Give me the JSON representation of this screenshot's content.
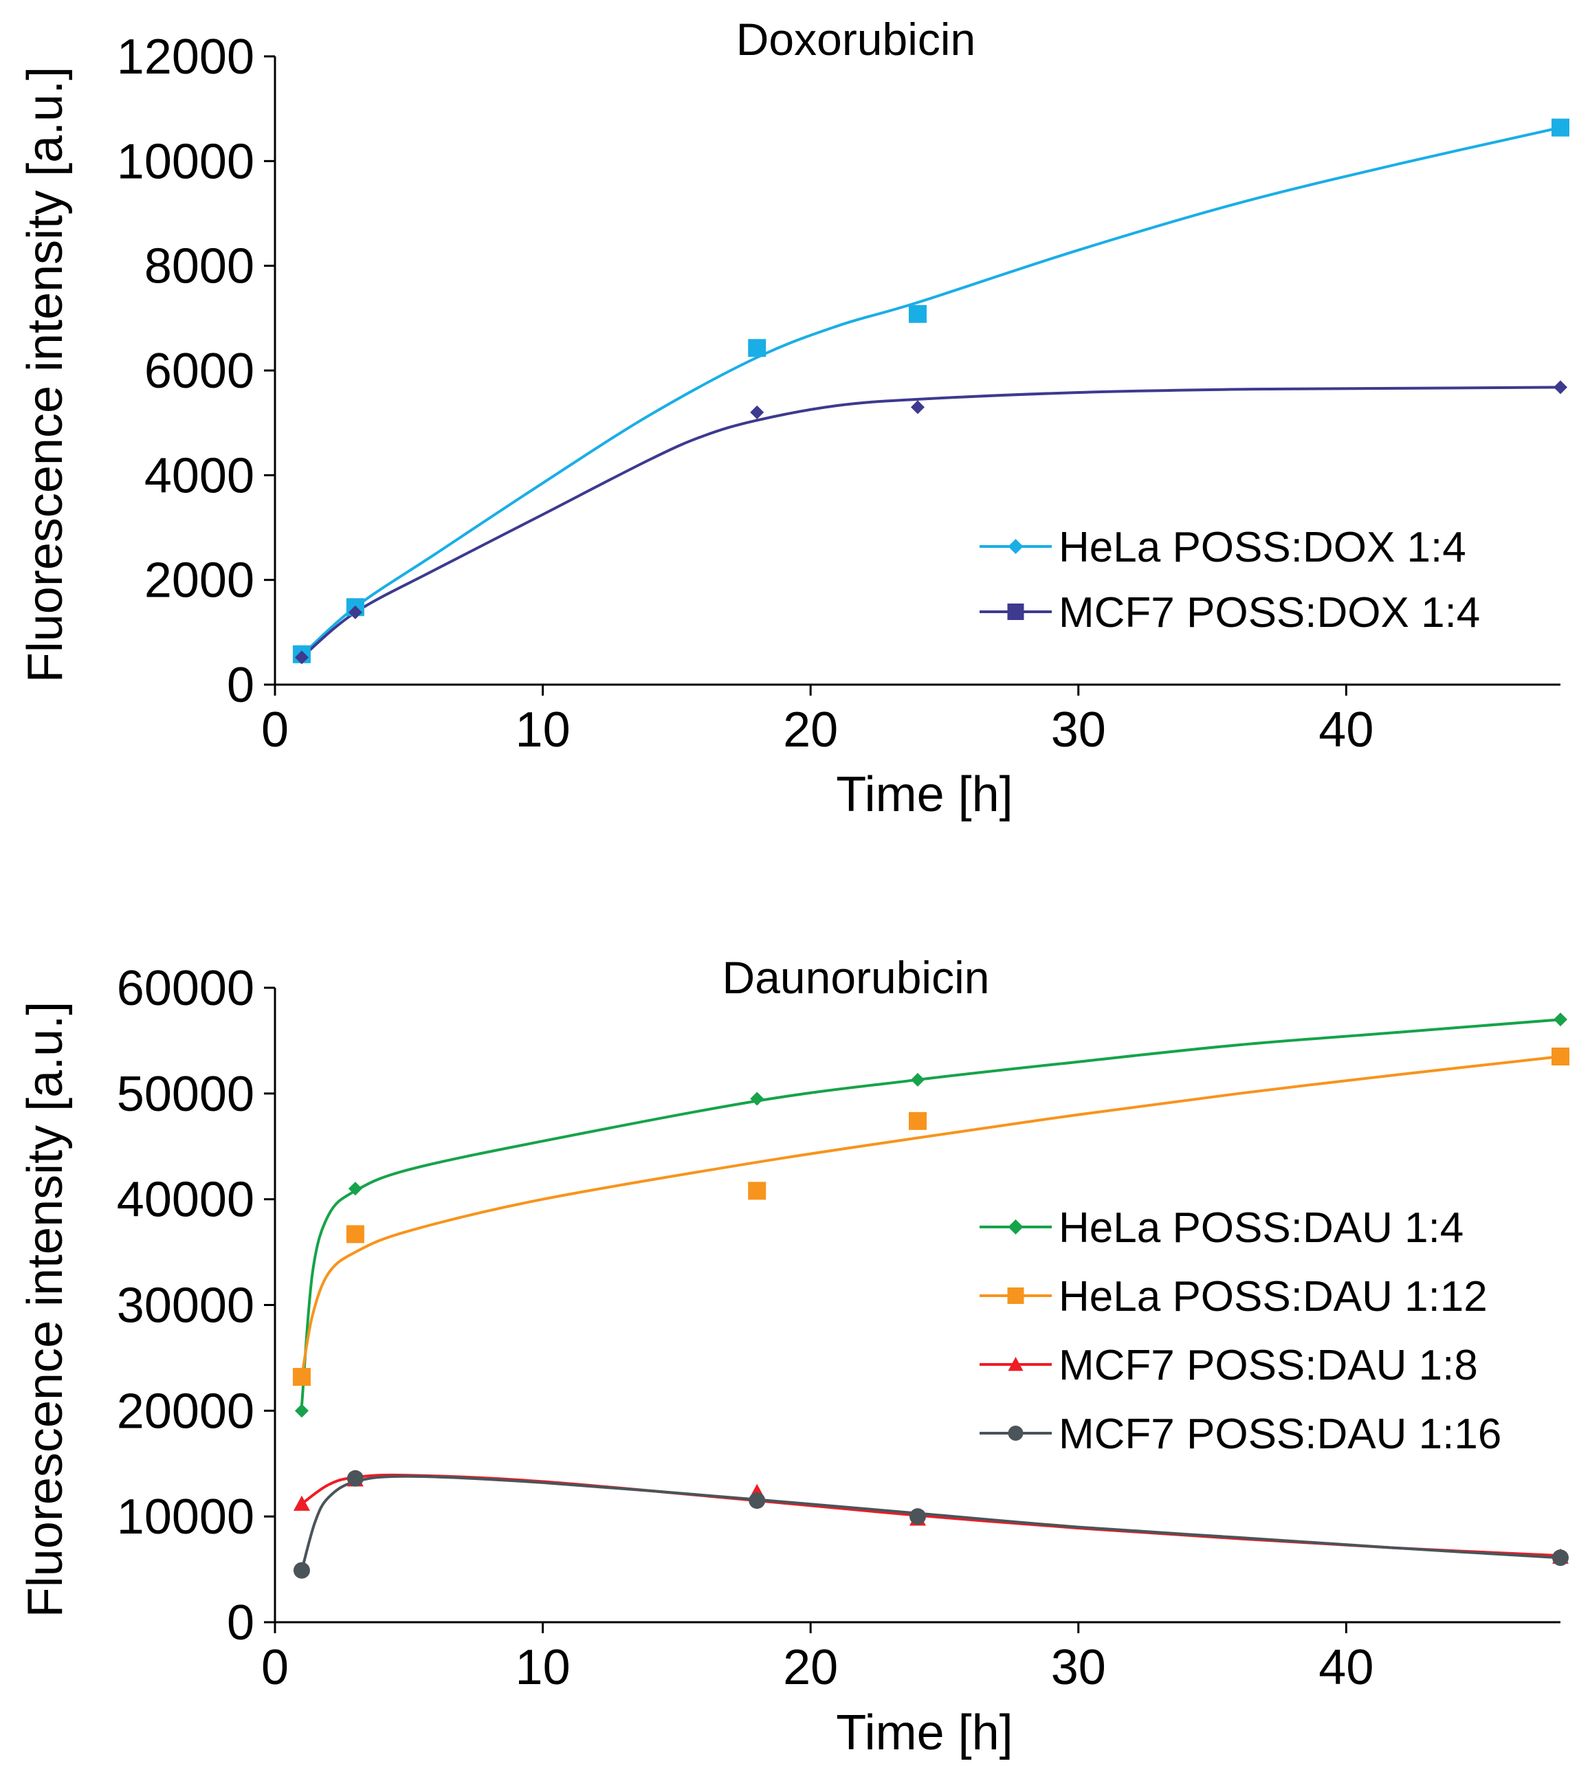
{
  "chart_data": [
    {
      "type": "line",
      "title": "Doxorubicin",
      "xlabel": "Time [h]",
      "ylabel": "Fluorescence intensity [a.u.]",
      "xlim": [
        0,
        48
      ],
      "ylim": [
        0,
        12000
      ],
      "xticks": [
        0,
        10,
        20,
        30,
        40
      ],
      "yticks": [
        0,
        2000,
        4000,
        6000,
        8000,
        10000,
        12000
      ],
      "grid": false,
      "legend_position": "lower-right",
      "x": [
        1,
        3,
        18,
        24,
        48
      ],
      "series": [
        {
          "name": "HeLa POSS:DOX 1:4",
          "legend_marker": "diamond",
          "point_marker": "square",
          "marker_size": 26,
          "color": "#1aaee6",
          "values": [
            580,
            1480,
            6430,
            7080,
            10640
          ],
          "curve": [
            [
              1,
              560
            ],
            [
              3,
              1480
            ],
            [
              6,
              2500
            ],
            [
              10,
              3850
            ],
            [
              14,
              5150
            ],
            [
              18,
              6250
            ],
            [
              21,
              6850
            ],
            [
              24,
              7300
            ],
            [
              30,
              8300
            ],
            [
              36,
              9200
            ],
            [
              42,
              9950
            ],
            [
              48,
              10640
            ]
          ]
        },
        {
          "name": "MCF7 POSS:DOX 1:4",
          "legend_marker": "square",
          "point_marker": "diamond",
          "marker_size": 20,
          "color": "#3d3a8f",
          "values": [
            520,
            1380,
            5200,
            5300,
            5680
          ],
          "curve": [
            [
              1,
              520
            ],
            [
              3,
              1380
            ],
            [
              6,
              2200
            ],
            [
              10,
              3250
            ],
            [
              14,
              4300
            ],
            [
              16,
              4750
            ],
            [
              18,
              5050
            ],
            [
              21,
              5330
            ],
            [
              24,
              5450
            ],
            [
              30,
              5580
            ],
            [
              36,
              5640
            ],
            [
              42,
              5660
            ],
            [
              48,
              5680
            ]
          ]
        }
      ]
    },
    {
      "type": "line",
      "title": "Daunorubicin",
      "xlabel": "Time [h]",
      "ylabel": "Fluorescence intensity [a.u.]",
      "xlim": [
        0,
        48
      ],
      "ylim": [
        0,
        60000
      ],
      "xticks": [
        0,
        10,
        20,
        30,
        40
      ],
      "yticks": [
        0,
        10000,
        20000,
        30000,
        40000,
        50000,
        60000
      ],
      "grid": false,
      "legend_position": "right",
      "x": [
        1,
        3,
        18,
        24,
        48
      ],
      "series": [
        {
          "name": "HeLa POSS:DAU 1:4",
          "marker": "diamond",
          "marker_size": 20,
          "color": "#16a34a",
          "values": [
            20000,
            41000,
            49500,
            51300,
            57000
          ],
          "curve": [
            [
              1,
              20500
            ],
            [
              1.4,
              33000
            ],
            [
              2,
              38500
            ],
            [
              3,
              40800
            ],
            [
              5,
              42800
            ],
            [
              10,
              45500
            ],
            [
              18,
              49300
            ],
            [
              24,
              51300
            ],
            [
              30,
              53000
            ],
            [
              36,
              54600
            ],
            [
              42,
              55800
            ],
            [
              48,
              57000
            ]
          ]
        },
        {
          "name": "HeLa POSS:DAU 1:12",
          "marker": "square",
          "marker_size": 26,
          "color": "#f7941d",
          "values": [
            23200,
            36700,
            40800,
            47400,
            53500
          ],
          "curve": [
            [
              1,
              23200
            ],
            [
              1.4,
              29000
            ],
            [
              2,
              33000
            ],
            [
              3,
              35000
            ],
            [
              5,
              37000
            ],
            [
              10,
              40000
            ],
            [
              18,
              43500
            ],
            [
              24,
              45800
            ],
            [
              30,
              48000
            ],
            [
              36,
              50000
            ],
            [
              42,
              51800
            ],
            [
              48,
              53500
            ]
          ]
        },
        {
          "name": "MCF7 POSS:DAU 1:8",
          "marker": "triangle",
          "marker_size": 24,
          "color": "#ee1c25",
          "values": [
            11200,
            13500,
            12300,
            9800,
            6200
          ],
          "curve": [
            [
              1,
              11200
            ],
            [
              2,
              13000
            ],
            [
              3,
              13700
            ],
            [
              5,
              13900
            ],
            [
              10,
              13300
            ],
            [
              18,
              11500
            ],
            [
              24,
              10100
            ],
            [
              30,
              8900
            ],
            [
              36,
              7900
            ],
            [
              42,
              7000
            ],
            [
              48,
              6300
            ]
          ]
        },
        {
          "name": "MCF7 POSS:DAU 1:16",
          "marker": "circle",
          "marker_size": 24,
          "color": "#4a5459",
          "values": [
            4900,
            13600,
            11500,
            10000,
            6100
          ],
          "curve": [
            [
              1,
              4900
            ],
            [
              1.5,
              9500
            ],
            [
              2,
              11800
            ],
            [
              3,
              13300
            ],
            [
              5,
              13800
            ],
            [
              10,
              13200
            ],
            [
              18,
              11600
            ],
            [
              24,
              10300
            ],
            [
              30,
              9000
            ],
            [
              36,
              8000
            ],
            [
              42,
              7000
            ],
            [
              48,
              6100
            ]
          ]
        }
      ]
    }
  ]
}
